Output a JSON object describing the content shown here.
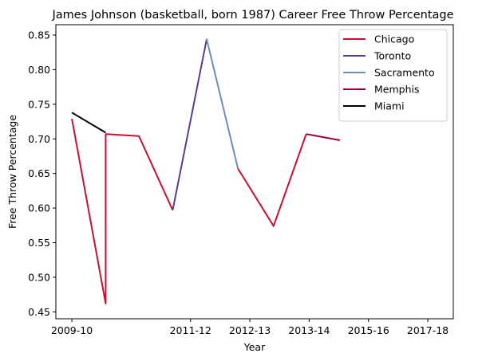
{
  "chart_data": {
    "type": "line",
    "title": "James Johnson (basketball, born 1987) Career Free Throw Percentage",
    "xlabel": "Year",
    "ylabel": "Free Throw Percentage",
    "x_ticks": [
      "2009-10",
      "2011-12",
      "2012-13",
      "2013-14",
      "2015-16",
      "2017-18"
    ],
    "x_tick_positions": [
      0,
      2,
      3,
      4,
      5,
      6
    ],
    "xlim": [
      -0.27,
      6.43
    ],
    "ylim": [
      0.44,
      0.865
    ],
    "y_ticks": [
      0.45,
      0.5,
      0.55,
      0.6,
      0.65,
      0.7,
      0.75,
      0.8,
      0.85
    ],
    "grid": false,
    "legend_position": "top-right",
    "series": [
      {
        "name": "Chicago",
        "color": "#C8102E",
        "segments": [
          [
            [
              0,
              0.729
            ],
            [
              0.57,
              0.462
            ],
            [
              0.57,
              0.707
            ],
            [
              1.13,
              0.704
            ],
            [
              1.7,
              0.597
            ]
          ],
          [
            [
              2.8,
              0.657
            ],
            [
              3.4,
              0.574
            ],
            [
              3.95,
              0.707
            ]
          ]
        ]
      },
      {
        "name": "Toronto",
        "color": "#5A3C8C",
        "segments": [
          [
            [
              1.7,
              0.597
            ],
            [
              2.27,
              0.843
            ]
          ]
        ]
      },
      {
        "name": "Sacramento",
        "color": "#6A8FBF",
        "segments": [
          [
            [
              2.27,
              0.845
            ],
            [
              2.8,
              0.657
            ]
          ]
        ]
      },
      {
        "name": "Memphis",
        "color": "#98002E",
        "segments": [
          [
            [
              3.95,
              0.707
            ],
            [
              4.52,
              0.698
            ]
          ]
        ]
      },
      {
        "name": "Miami",
        "color": "#000000",
        "segments": [
          [
            [
              0,
              0.738
            ],
            [
              0.57,
              0.709
            ]
          ]
        ]
      }
    ]
  }
}
